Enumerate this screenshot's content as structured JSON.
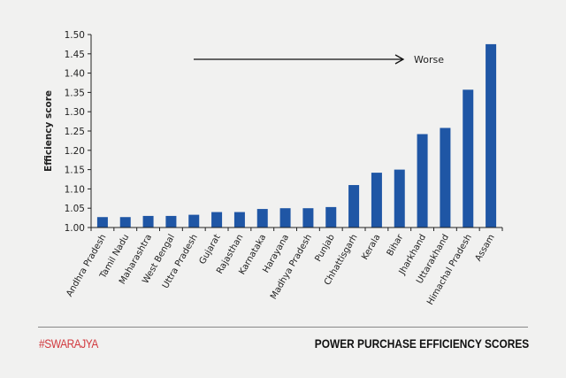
{
  "chart_data": {
    "type": "bar",
    "title": "POWER PURCHASE EFFICIENCY SCORES",
    "xlabel": "",
    "ylabel": "Efficiency score",
    "ylim": [
      1.0,
      1.5
    ],
    "yticks": [
      "1.00",
      "1.05",
      "1.10",
      "1.15",
      "1.20",
      "1.25",
      "1.30",
      "1.35",
      "1.40",
      "1.45",
      "1.50"
    ],
    "grid": false,
    "bar_color": "#1f56a5",
    "annotation": {
      "text": "Worse",
      "arrow": "right"
    },
    "categories": [
      "Andhra Pradesh",
      "Tamil Nadu",
      "Maharashtra",
      "West Bengal",
      "Uttra Pradesh",
      "Gujarat",
      "Rajasthan",
      "Karnataka",
      "Harayana",
      "Madhya Pradesh",
      "Punjab",
      "Chhattisgarh",
      "Kerala",
      "Bihar",
      "Jharkhand",
      "Uttarakhand",
      "Himachal Pradesh",
      "Assam"
    ],
    "values": [
      1.027,
      1.027,
      1.03,
      1.03,
      1.033,
      1.04,
      1.04,
      1.048,
      1.05,
      1.05,
      1.053,
      1.11,
      1.142,
      1.15,
      1.242,
      1.258,
      1.357,
      1.475
    ]
  },
  "footer": {
    "brand": "#SWARAJYA",
    "title": "POWER PURCHASE EFFICIENCY SCORES",
    "brand_color": "#d23a3f"
  }
}
